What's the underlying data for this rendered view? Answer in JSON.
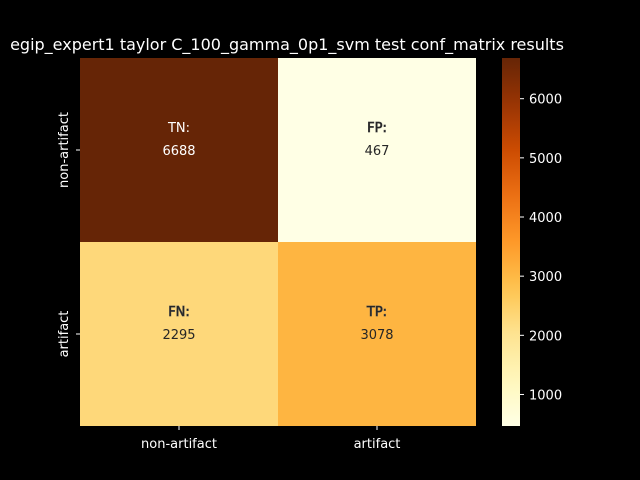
{
  "chart_data": {
    "type": "heatmap",
    "title": "egip_expert1 taylor C_100_gamma_0p1_svm test conf_matrix results",
    "rows": [
      "non-artifact",
      "artifact"
    ],
    "columns": [
      "non-artifact",
      "artifact"
    ],
    "cells": [
      [
        {
          "tag": "TN:",
          "value": 6688
        },
        {
          "tag": "FP:",
          "value": 467
        }
      ],
      [
        {
          "tag": "FN:",
          "value": 2295
        },
        {
          "tag": "TP:",
          "value": 3078
        }
      ]
    ],
    "colorbar": {
      "min": 467,
      "max": 6688,
      "ticks": [
        1000,
        2000,
        3000,
        4000,
        5000,
        6000
      ]
    },
    "colormap": "YlOrBr"
  }
}
